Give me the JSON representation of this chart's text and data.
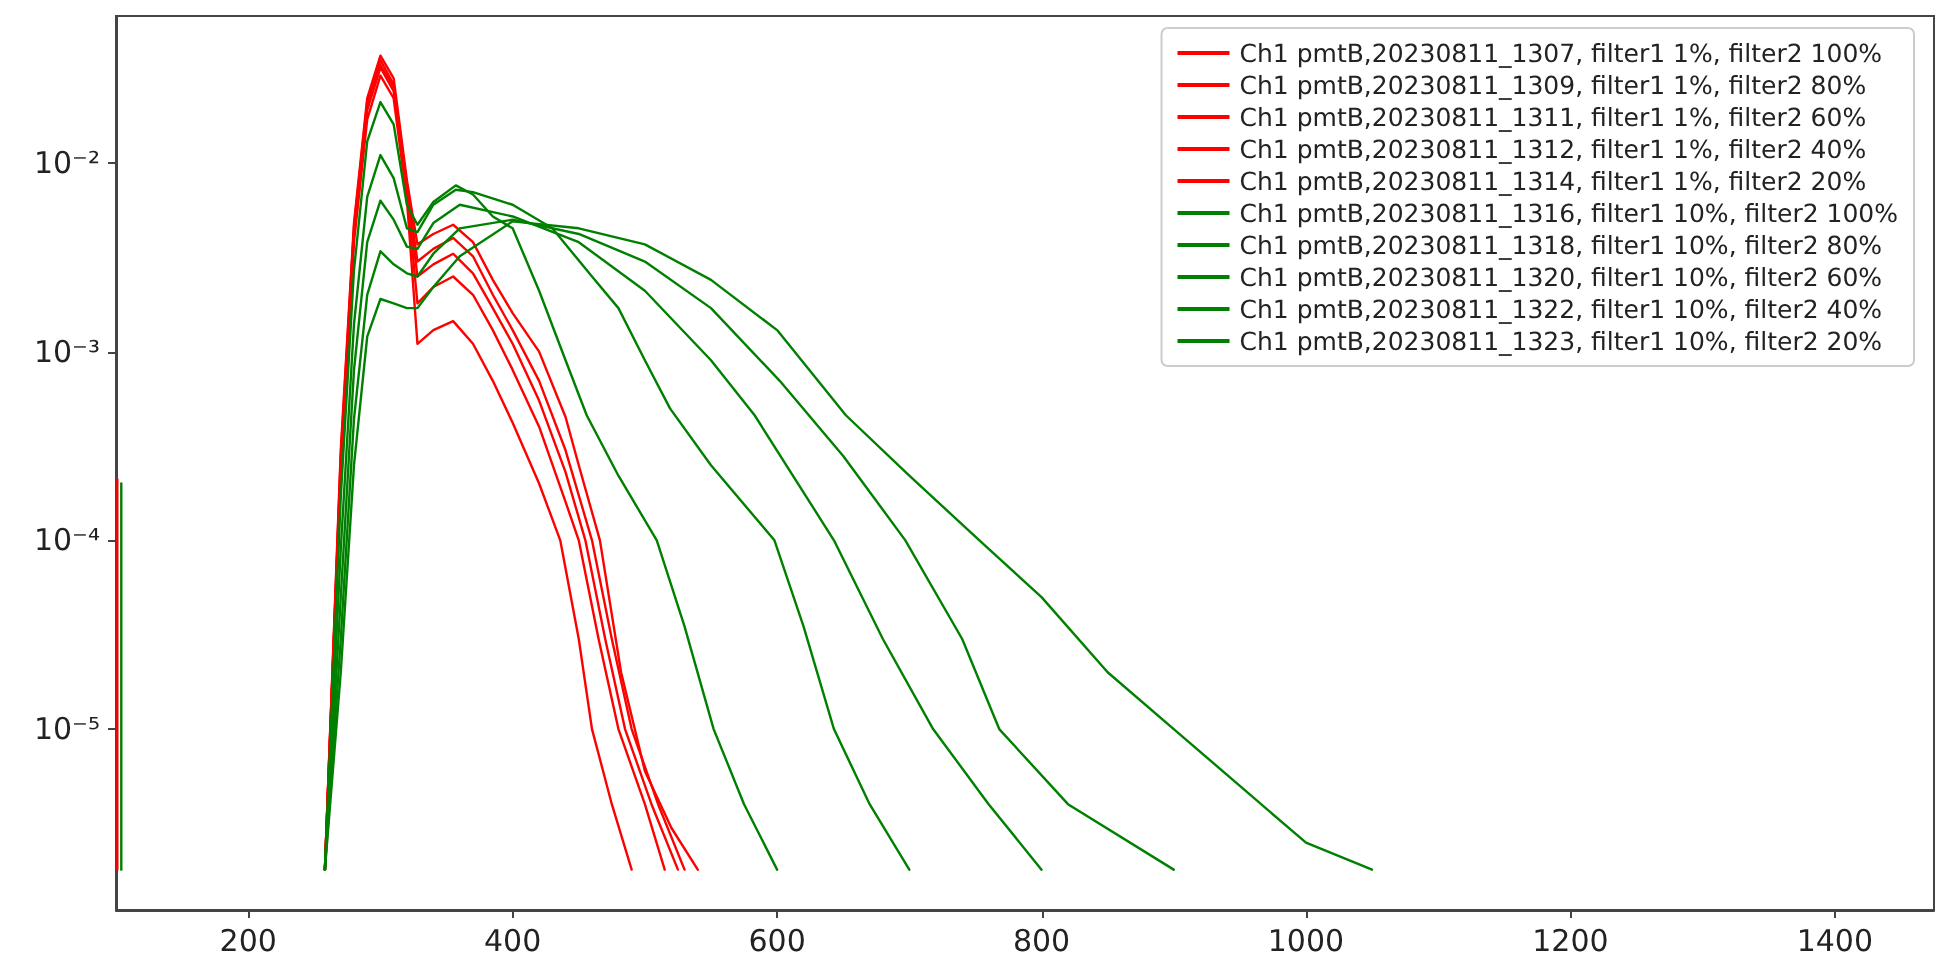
{
  "chart_data": {
    "type": "line",
    "log": "y",
    "legend": "top right",
    "xlim": [
      100,
      1475
    ],
    "ylim": [
      1.1e-06,
      0.06
    ],
    "xticks": [
      200,
      400,
      600,
      800,
      1000,
      1200,
      1400
    ],
    "yticks": [
      {
        "value": 1e-05,
        "label": "10⁻⁵"
      },
      {
        "value": 0.0001,
        "label": "10⁻⁴"
      },
      {
        "value": 0.001,
        "label": "10⁻³"
      },
      {
        "value": 0.01,
        "label": "10⁻²"
      }
    ],
    "series": [
      {
        "name": "Ch1 pmtB,20230811_1307, filter1 1%, filter2 100%",
        "color": "#ff0000",
        "x": [
          258,
          270,
          280,
          290,
          300,
          310,
          320,
          328,
          340,
          355,
          370,
          385,
          400,
          420,
          440,
          450,
          466,
          482,
          500,
          520,
          540
        ],
        "values": [
          1.8e-06,
          0.0003,
          0.0048,
          0.022,
          0.037,
          0.028,
          0.0081,
          0.0037,
          0.0042,
          0.0047,
          0.0038,
          0.0024,
          0.0016,
          0.001,
          0.00045,
          0.00025,
          0.0001,
          2e-05,
          6e-06,
          3e-06,
          1.8e-06
        ]
      },
      {
        "name": "Ch1 pmtB,20230811_1309, filter1 1%, filter2 80%",
        "color": "#ff0000",
        "x": [
          258,
          270,
          280,
          290,
          300,
          310,
          320,
          328,
          340,
          355,
          370,
          385,
          400,
          420,
          440,
          460,
          475,
          490,
          510,
          530
        ],
        "values": [
          1.8e-06,
          0.00028,
          0.0046,
          0.021,
          0.035,
          0.026,
          0.0077,
          0.003,
          0.0035,
          0.004,
          0.0032,
          0.002,
          0.0013,
          0.0007,
          0.0003,
          0.0001,
          3e-05,
          1e-05,
          4e-06,
          1.8e-06
        ]
      },
      {
        "name": "Ch1 pmtB,20230811_1311, filter1 1%, filter2 60%",
        "color": "#ff0000",
        "x": [
          258,
          270,
          280,
          290,
          300,
          310,
          320,
          328,
          340,
          355,
          370,
          385,
          400,
          420,
          440,
          455,
          470,
          485,
          505,
          525
        ],
        "values": [
          1.8e-06,
          0.00026,
          0.0043,
          0.02,
          0.033,
          0.025,
          0.0073,
          0.0025,
          0.0029,
          0.0033,
          0.0026,
          0.0017,
          0.0011,
          0.00055,
          0.00023,
          0.0001,
          3e-05,
          1e-05,
          4e-06,
          1.8e-06
        ]
      },
      {
        "name": "Ch1 pmtB,20230811_1312, filter1 1%, filter2 40%",
        "color": "#ff0000",
        "x": [
          258,
          270,
          280,
          290,
          300,
          310,
          320,
          328,
          340,
          355,
          370,
          385,
          400,
          420,
          440,
          450,
          465,
          480,
          500,
          515
        ],
        "values": [
          1.8e-06,
          0.00025,
          0.0042,
          0.019,
          0.032,
          0.024,
          0.007,
          0.0018,
          0.0022,
          0.0025,
          0.002,
          0.0013,
          0.0008,
          0.0004,
          0.00016,
          0.0001,
          3e-05,
          1e-05,
          4e-06,
          1.8e-06
        ]
      },
      {
        "name": "Ch1 pmtB,20230811_1314, filter1 1%, filter2 20%",
        "color": "#ff0000",
        "x": [
          258,
          270,
          280,
          290,
          300,
          310,
          320,
          328,
          340,
          355,
          370,
          385,
          400,
          420,
          436,
          450,
          460,
          475,
          490
        ],
        "values": [
          1.8e-06,
          0.00023,
          0.0038,
          0.017,
          0.029,
          0.022,
          0.0064,
          0.0011,
          0.0013,
          0.00145,
          0.0011,
          0.0007,
          0.00042,
          0.0002,
          0.0001,
          3e-05,
          1e-05,
          4e-06,
          1.8e-06
        ]
      },
      {
        "name": "Ch1 pmtB,20230811_1316, filter1 10%, filter2 100%",
        "color": "#008000",
        "x": [
          258,
          270,
          280,
          290,
          300,
          310,
          320,
          328,
          340,
          357,
          370,
          385,
          400,
          420,
          440,
          456,
          480,
          509,
          530,
          552,
          575,
          600
        ],
        "values": [
          1.8e-06,
          0.00017,
          0.0027,
          0.013,
          0.021,
          0.016,
          0.006,
          0.0047,
          0.0062,
          0.0076,
          0.0068,
          0.0052,
          0.0045,
          0.0021,
          0.0009,
          0.00046,
          0.00022,
          0.0001,
          3.5e-05,
          1e-05,
          4e-06,
          1.8e-06
        ]
      },
      {
        "name": "Ch1 pmtB,20230811_1318, filter1 10%, filter2 80%",
        "color": "#008000",
        "x": [
          258,
          270,
          280,
          290,
          300,
          310,
          320,
          328,
          340,
          357,
          370,
          400,
          430,
          460,
          480,
          500,
          519,
          550,
          598,
          620,
          643,
          670,
          700
        ],
        "values": [
          1.8e-06,
          9e-05,
          0.0014,
          0.0066,
          0.011,
          0.0083,
          0.0045,
          0.0043,
          0.006,
          0.0072,
          0.007,
          0.006,
          0.0045,
          0.0025,
          0.0017,
          0.0009,
          0.0005,
          0.00025,
          0.0001,
          3.5e-05,
          1e-05,
          4e-06,
          1.8e-06
        ]
      },
      {
        "name": "Ch1 pmtB,20230811_1320, filter1 10%, filter2 60%",
        "color": "#008000",
        "x": [
          258,
          270,
          280,
          290,
          300,
          310,
          320,
          328,
          340,
          360,
          400,
          450,
          500,
          550,
          583,
          643,
          680,
          718,
          760,
          800
        ],
        "values": [
          1.8e-06,
          5e-05,
          0.0008,
          0.0038,
          0.0063,
          0.005,
          0.0036,
          0.0035,
          0.0048,
          0.006,
          0.0052,
          0.0038,
          0.0021,
          0.0009,
          0.00046,
          0.0001,
          3e-05,
          1e-05,
          4e-06,
          1.8e-06
        ]
      },
      {
        "name": "Ch1 pmtB,20230811_1322, filter1 10%, filter2 40%",
        "color": "#008000",
        "x": [
          258,
          270,
          280,
          290,
          300,
          310,
          320,
          328,
          340,
          360,
          400,
          450,
          500,
          550,
          602,
          650,
          697,
          740,
          768,
          820,
          900
        ],
        "values": [
          1.8e-06,
          3e-05,
          0.00044,
          0.002,
          0.0034,
          0.0029,
          0.0026,
          0.0025,
          0.0033,
          0.0045,
          0.005,
          0.0042,
          0.003,
          0.0017,
          0.0007,
          0.00028,
          0.0001,
          3e-05,
          1e-05,
          4e-06,
          1.8e-06
        ]
      },
      {
        "name": "Ch1 pmtB,20230811_1323, filter1 10%, filter2 20%",
        "color": "#008000",
        "x": [
          258,
          270,
          280,
          290,
          300,
          310,
          320,
          328,
          340,
          360,
          400,
          450,
          500,
          550,
          600,
          652,
          700,
          753,
          800,
          850,
          900,
          950,
          1000,
          1050
        ],
        "values": [
          1.8e-06,
          2e-05,
          0.00025,
          0.0012,
          0.0019,
          0.0018,
          0.0017,
          0.0017,
          0.0022,
          0.0032,
          0.0049,
          0.0045,
          0.0037,
          0.0024,
          0.0013,
          0.00046,
          0.00022,
          0.0001,
          5e-05,
          2e-05,
          1e-05,
          5e-06,
          2.5e-06,
          1.8e-06
        ]
      },
      {
        "color": "#ff0000",
        "x": [
          101,
          101
        ],
        "values": [
          0.00021,
          1.8e-06
        ]
      },
      {
        "color": "#008000",
        "x": [
          104,
          104
        ],
        "values": [
          0.0002,
          1.8e-06
        ]
      }
    ]
  }
}
